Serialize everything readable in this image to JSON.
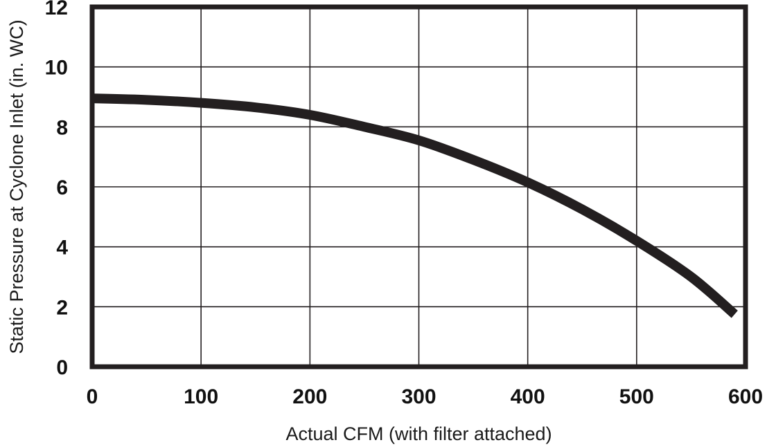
{
  "chart_data": {
    "type": "line",
    "title": "",
    "xlabel": "Actual CFM (with filter attached)",
    "ylabel": "Static Pressure at Cyclone Inlet (in. WC)",
    "xlim": [
      0,
      600
    ],
    "ylim": [
      0,
      12
    ],
    "x_ticks": [
      0,
      100,
      200,
      300,
      400,
      500,
      600
    ],
    "y_ticks": [
      0,
      2,
      4,
      6,
      8,
      10,
      12
    ],
    "x_tick_labels": [
      "0",
      "100",
      "200",
      "300",
      "400",
      "500",
      "600"
    ],
    "y_tick_labels": [
      "0",
      "2",
      "4",
      "6",
      "8",
      "10",
      "12"
    ],
    "grid": true,
    "legend": "none",
    "series": [
      {
        "color": "#231f20",
        "x": [
          0,
          50,
          100,
          150,
          200,
          250,
          300,
          350,
          400,
          450,
          500,
          550,
          590
        ],
        "y": [
          8.95,
          8.9,
          8.8,
          8.65,
          8.4,
          8.0,
          7.55,
          6.9,
          6.15,
          5.25,
          4.2,
          3.0,
          1.75
        ]
      }
    ]
  }
}
